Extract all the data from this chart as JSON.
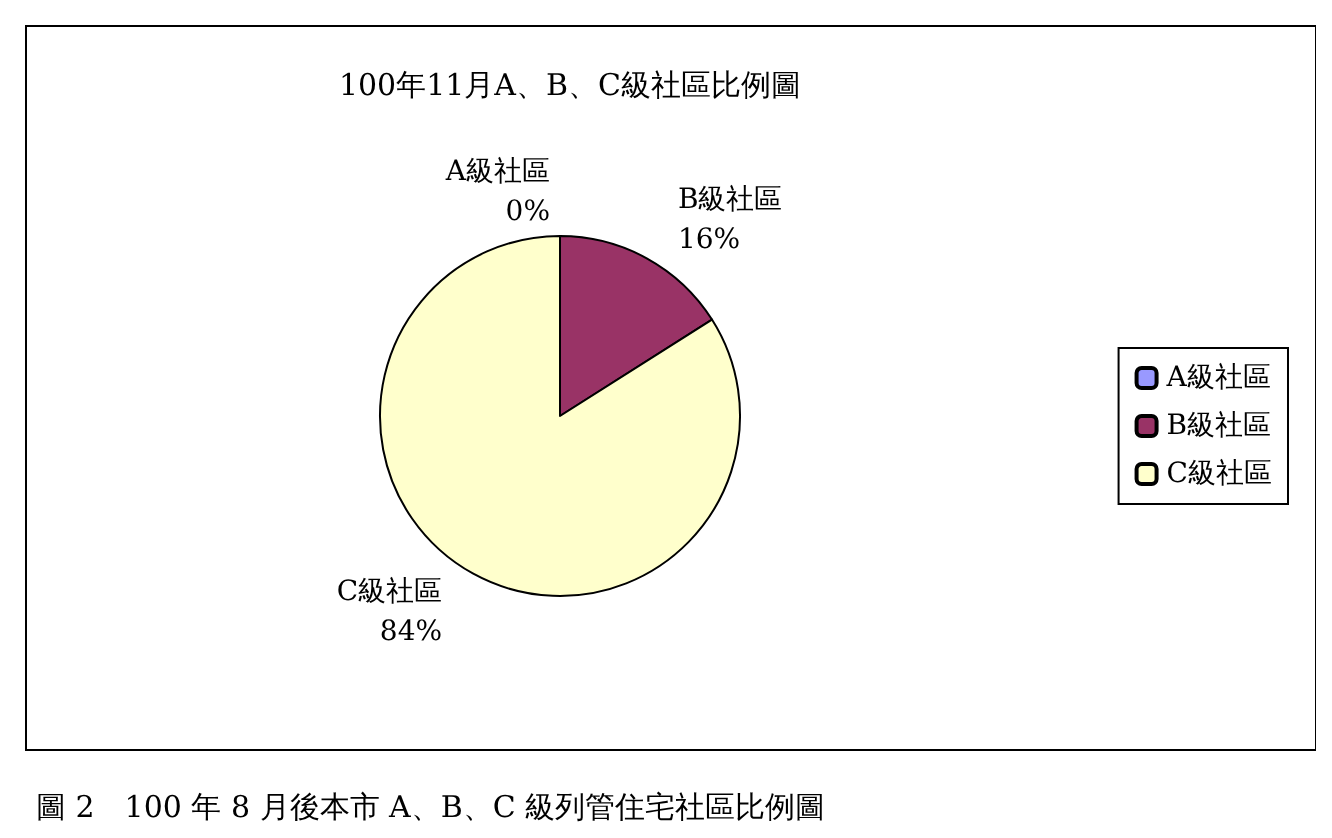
{
  "chart_data": {
    "type": "pie",
    "title": "100年11月A、B、C級社區比例圖",
    "categories": [
      "A級社區",
      "B級社區",
      "C級社區"
    ],
    "values": [
      0,
      16,
      84
    ],
    "colors": [
      "#9999ff",
      "#993366",
      "#ffffcc"
    ],
    "value_labels": [
      "0%",
      "16%",
      "84%"
    ],
    "legend": "right",
    "annotations": [
      "圖 2　100 年 8 月後本市 A、B、C 級列管住宅社區比例圖"
    ]
  }
}
